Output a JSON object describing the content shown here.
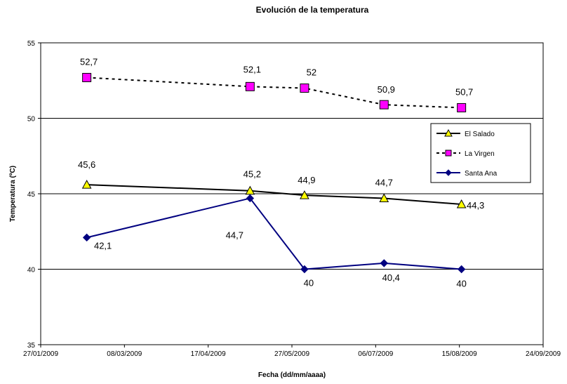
{
  "chart_data": {
    "type": "line",
    "title": "Evolución de la temperatura",
    "xlabel": "Fecha (dd/mm/aaaa)",
    "ylabel": "Temperatura (ºC)",
    "xlim": [
      "2009-01-27",
      "2009-09-24"
    ],
    "ylim": [
      35,
      55
    ],
    "x_ticks": [
      "27/01/2009",
      "08/03/2009",
      "17/04/2009",
      "27/05/2009",
      "06/07/2009",
      "15/08/2009",
      "24/09/2009"
    ],
    "x_tick_dates": [
      "2009-01-27",
      "2009-03-08",
      "2009-04-17",
      "2009-05-27",
      "2009-07-06",
      "2009-08-15",
      "2009-09-24"
    ],
    "y_ticks": [
      "35",
      "40",
      "45",
      "50",
      "55"
    ],
    "y_tick_values": [
      35,
      40,
      45,
      50,
      55
    ],
    "grid": "horizontal major gridlines",
    "legend_position": "right",
    "series": [
      {
        "name": "El Salado",
        "color": "#000000",
        "line_style": "solid",
        "marker": "triangle",
        "marker_fill": "#FFFF00",
        "points": [
          {
            "x": "2009-02-18",
            "y": 45.6,
            "label": "45,6"
          },
          {
            "x": "2009-05-07",
            "y": 45.2,
            "label": "45,2"
          },
          {
            "x": "2009-06-02",
            "y": 44.9,
            "label": "44,9"
          },
          {
            "x": "2009-07-10",
            "y": 44.7,
            "label": "44,7"
          },
          {
            "x": "2009-08-16",
            "y": 44.3,
            "label": "44,3"
          }
        ]
      },
      {
        "name": "La Virgen",
        "color": "#000000",
        "line_style": "dashed",
        "marker": "square",
        "marker_fill": "#FF00FF",
        "points": [
          {
            "x": "2009-02-18",
            "y": 52.7,
            "label": "52,7"
          },
          {
            "x": "2009-05-07",
            "y": 52.1,
            "label": "52,1"
          },
          {
            "x": "2009-06-02",
            "y": 52.0,
            "label": "52"
          },
          {
            "x": "2009-07-10",
            "y": 50.9,
            "label": "50,9"
          },
          {
            "x": "2009-08-16",
            "y": 50.7,
            "label": "50,7"
          }
        ]
      },
      {
        "name": "Santa Ana",
        "color": "#000080",
        "line_style": "solid",
        "marker": "diamond",
        "marker_fill": "#000080",
        "points": [
          {
            "x": "2009-02-18",
            "y": 42.1,
            "label": "42,1"
          },
          {
            "x": "2009-05-07",
            "y": 44.7,
            "label": "44,7"
          },
          {
            "x": "2009-06-02",
            "y": 40.0,
            "label": "40"
          },
          {
            "x": "2009-07-10",
            "y": 40.4,
            "label": "40,4"
          },
          {
            "x": "2009-08-16",
            "y": 40.0,
            "label": "40"
          }
        ]
      }
    ]
  }
}
